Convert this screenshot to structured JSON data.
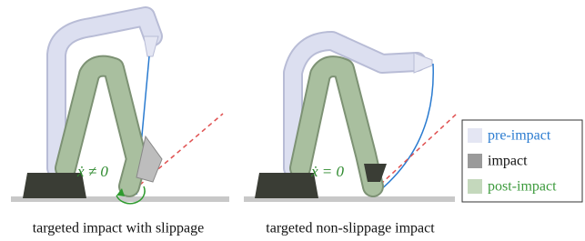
{
  "panels": [
    {
      "annotation": "ẋ ≠ 0",
      "caption": "targeted impact with slippage"
    },
    {
      "annotation": "ẋ = 0",
      "caption": "targeted non-slippage impact"
    }
  ],
  "legend": [
    {
      "label": "pre-impact"
    },
    {
      "label": "impact"
    },
    {
      "label": "post-impact"
    }
  ]
}
